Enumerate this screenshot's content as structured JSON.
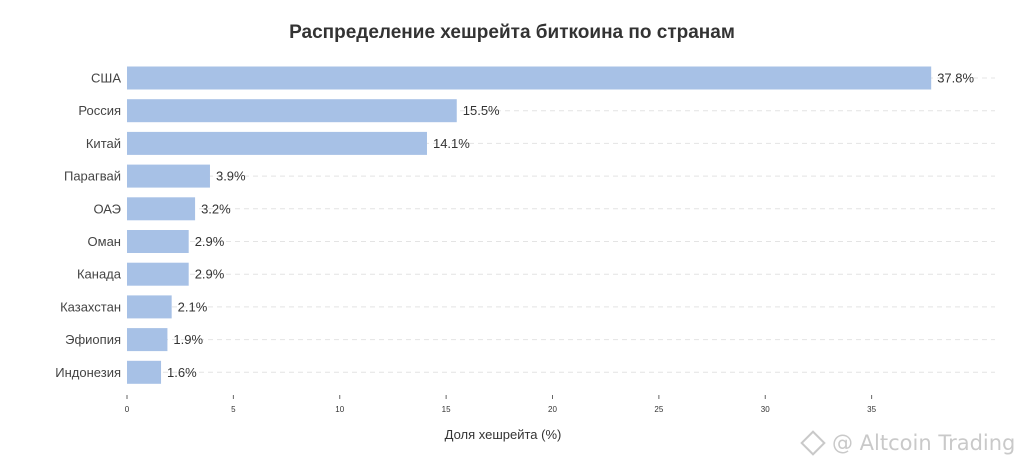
{
  "chart_data": {
    "type": "bar",
    "orientation": "horizontal",
    "title": "Распределение хешрейта биткоина по странам",
    "xlabel": "Доля хешрейта (%)",
    "ylabel": "",
    "categories": [
      "США",
      "Россия",
      "Китай",
      "Парагвай",
      "ОАЭ",
      "Оман",
      "Канада",
      "Казахстан",
      "Эфиопия",
      "Индонезия"
    ],
    "values": [
      37.8,
      15.5,
      14.1,
      3.9,
      3.2,
      2.9,
      2.9,
      2.1,
      1.9,
      1.6
    ],
    "value_labels": [
      "37.8%",
      "15.5%",
      "14.1%",
      "3.9%",
      "3.2%",
      "2.9%",
      "2.9%",
      "2.1%",
      "1.9%",
      "1.6%"
    ],
    "xticks": [
      0,
      5,
      10,
      15,
      20,
      25,
      30,
      35
    ],
    "xlim": [
      0,
      40
    ],
    "grid": "horizontal dashed",
    "bar_color": "#a7c1e6"
  },
  "watermark": "@ Altcoin Trading"
}
